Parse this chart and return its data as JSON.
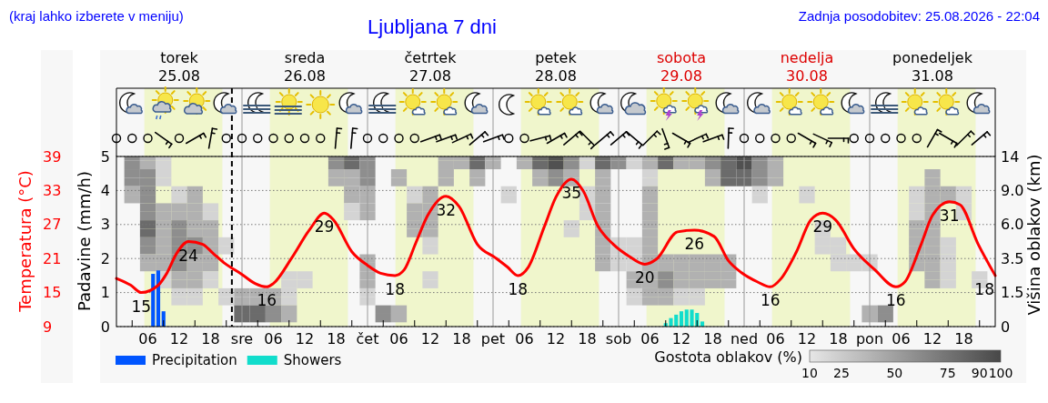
{
  "chart_data": [
    {
      "type": "line",
      "title": "Ljubljana 7 dni",
      "annotations": [
        "(kraj lahko izberete v meniju)",
        "Zadnja posodobitev: 25.08.2026 - 22:04"
      ],
      "xlim": [
        "2026-08-25T00:00",
        "2026-09-01T00:00"
      ],
      "xticks": [
        {
          "value": "2026-08-25T03:00",
          "label": null
        },
        {
          "value": "2026-08-25T06:00",
          "label": "06"
        },
        {
          "value": "2026-08-25T09:00",
          "label": null
        },
        {
          "value": "2026-08-25T12:00",
          "label": "12"
        },
        {
          "value": "2026-08-25T15:00",
          "label": null
        },
        {
          "value": "2026-08-25T18:00",
          "label": "18"
        },
        {
          "value": "2026-08-25T21:00",
          "label": null
        },
        {
          "value": "2026-08-26T03:00",
          "label": null
        },
        {
          "value": "2026-08-26T06:00",
          "label": "06"
        },
        {
          "value": "2026-08-26T09:00",
          "label": null
        },
        {
          "value": "2026-08-26T12:00",
          "label": "12"
        },
        {
          "value": "2026-08-26T15:00",
          "label": null
        },
        {
          "value": "2026-08-26T18:00",
          "label": "18"
        },
        {
          "value": "2026-08-26T21:00",
          "label": null
        },
        {
          "value": "2026-08-27T03:00",
          "label": null
        },
        {
          "value": "2026-08-27T06:00",
          "label": "06"
        },
        {
          "value": "2026-08-27T09:00",
          "label": null
        },
        {
          "value": "2026-08-27T12:00",
          "label": "12"
        },
        {
          "value": "2026-08-27T15:00",
          "label": null
        },
        {
          "value": "2026-08-27T18:00",
          "label": "18"
        },
        {
          "value": "2026-08-27T21:00",
          "label": null
        },
        {
          "value": "2026-08-28T03:00",
          "label": null
        },
        {
          "value": "2026-08-28T06:00",
          "label": "06"
        },
        {
          "value": "2026-08-28T09:00",
          "label": null
        },
        {
          "value": "2026-08-28T12:00",
          "label": "12"
        },
        {
          "value": "2026-08-28T15:00",
          "label": null
        },
        {
          "value": "2026-08-28T18:00",
          "label": "18"
        },
        {
          "value": "2026-08-28T21:00",
          "label": null
        },
        {
          "value": "2026-08-29T03:00",
          "label": null
        },
        {
          "value": "2026-08-29T06:00",
          "label": "06"
        },
        {
          "value": "2026-08-29T09:00",
          "label": null
        },
        {
          "value": "2026-08-29T12:00",
          "label": "12"
        },
        {
          "value": "2026-08-29T15:00",
          "label": null
        },
        {
          "value": "2026-08-29T18:00",
          "label": "18"
        },
        {
          "value": "2026-08-29T21:00",
          "label": null
        },
        {
          "value": "2026-08-30T03:00",
          "label": null
        },
        {
          "value": "2026-08-30T06:00",
          "label": "06"
        },
        {
          "value": "2026-08-30T09:00",
          "label": null
        },
        {
          "value": "2026-08-30T12:00",
          "label": "12"
        },
        {
          "value": "2026-08-30T15:00",
          "label": null
        },
        {
          "value": "2026-08-30T18:00",
          "label": "18"
        },
        {
          "value": "2026-08-30T21:00",
          "label": null
        },
        {
          "value": "2026-08-31T03:00",
          "label": null
        },
        {
          "value": "2026-08-31T06:00",
          "label": "06"
        },
        {
          "value": "2026-08-31T09:00",
          "label": null
        },
        {
          "value": "2026-08-31T12:00",
          "label": "12"
        },
        {
          "value": "2026-08-31T15:00",
          "label": null
        },
        {
          "value": "2026-08-31T18:00",
          "label": "18"
        },
        {
          "value": "2026-08-31T21:00",
          "label": null
        }
      ],
      "x2lim": [
        "2026-08-25T00:00",
        "2026-09-01T00:00"
      ],
      "x2ticks": [
        {
          "value": "2026-08-25T12:00",
          "label": "torek\n25.08"
        },
        {
          "value": "2026-08-26T12:00",
          "label": "sreda\n26.08"
        },
        {
          "value": "2026-08-27T12:00",
          "label": "četrtek\n27.08"
        },
        {
          "value": "2026-08-28T12:00",
          "label": "petek\n28.08"
        },
        {
          "value": "2026-08-29T12:00",
          "label": "sobota\n29.08"
        },
        {
          "value": "2026-08-30T12:00",
          "label": "nedelja\n30.08"
        },
        {
          "value": "2026-08-31T12:00",
          "label": "ponedeljek\n31.08"
        }
      ],
      "ylabel": "Padavine (mm/h)",
      "ylim": [
        0,
        5
      ],
      "yticks": [
        0,
        1,
        2,
        3,
        4,
        5
      ],
      "y2label": "Temperatura (°C)",
      "y2lim": [
        9,
        39
      ],
      "y2ticks": [
        9,
        15,
        21,
        27,
        33,
        39
      ],
      "grid": "y",
      "legend": "bottom left",
      "bands": [
        {
          "axis": "x",
          "from": "2026-08-25T05:20",
          "to": "2026-08-25T20:15",
          "color": "#f0f6cc"
        },
        {
          "axis": "x",
          "from": "2026-08-26T05:20",
          "to": "2026-08-26T20:15",
          "color": "#f0f6cc"
        },
        {
          "axis": "x",
          "from": "2026-08-27T05:20",
          "to": "2026-08-27T20:15",
          "color": "#f0f6cc"
        },
        {
          "axis": "x",
          "from": "2026-08-28T05:20",
          "to": "2026-08-28T20:15",
          "color": "#f0f6cc"
        },
        {
          "axis": "x",
          "from": "2026-08-29T05:20",
          "to": "2026-08-29T20:15",
          "color": "#f0f6cc"
        },
        {
          "axis": "x",
          "from": "2026-08-30T05:20",
          "to": "2026-08-30T20:15",
          "color": "#f0f6cc"
        },
        {
          "axis": "x",
          "from": "2026-08-31T05:20",
          "to": "2026-08-31T20:15",
          "color": "#f0f6cc"
        }
      ],
      "ref_lines": [
        {
          "axis": "x",
          "value": "2026-08-26T00:00",
          "color": "#999999"
        },
        {
          "axis": "x",
          "value": "2026-08-27T00:00",
          "color": "#999999"
        },
        {
          "axis": "x",
          "value": "2026-08-28T00:00",
          "color": "#999999"
        },
        {
          "axis": "x",
          "value": "2026-08-29T00:00",
          "color": "#999999"
        },
        {
          "axis": "x",
          "value": "2026-08-30T00:00",
          "color": "#999999"
        },
        {
          "axis": "x",
          "value": "2026-08-31T00:00",
          "color": "#999999"
        },
        {
          "axis": "x",
          "value": "2026-08-25T22:04",
          "color": "#000000",
          "line_style": "dashed"
        }
      ],
      "series": [
        {
          "type": "bar",
          "name": "Precipitation",
          "color": "#0055ff",
          "x": [
            "2026-08-25T07:00",
            "2026-08-25T08:00",
            "2026-08-25T09:00"
          ],
          "values": [
            1.55,
            1.65,
            0.45
          ]
        },
        {
          "type": "bar",
          "name": "Showers",
          "color": "#11ddcc",
          "x": [
            "2026-08-29T09:00",
            "2026-08-29T10:00",
            "2026-08-29T11:00",
            "2026-08-29T12:00",
            "2026-08-29T13:00",
            "2026-08-29T14:00",
            "2026-08-29T15:00",
            "2026-08-29T16:00"
          ],
          "values": [
            0.1,
            0.25,
            0.35,
            0.45,
            0.5,
            0.5,
            0.4,
            0.15
          ]
        },
        {
          "type": "line",
          "axis": "y2",
          "color": "#ff0000",
          "x": [
            "2026-08-25T00:00",
            "2026-08-25T02:45",
            "2026-08-25T04:45",
            "2026-08-25T08:00",
            "2026-08-25T09:30",
            "2026-08-25T11:30",
            "2026-08-25T13:45",
            "2026-08-25T16:30",
            "2026-08-25T18:30",
            "2026-08-25T20:30",
            "2026-08-26T00:00",
            "2026-08-26T02:30",
            "2026-08-26T04:45",
            "2026-08-26T06:00",
            "2026-08-26T09:30",
            "2026-08-26T13:00",
            "2026-08-26T15:45",
            "2026-08-26T17:30",
            "2026-08-26T21:00",
            "2026-08-27T00:00",
            "2026-08-27T02:30",
            "2026-08-27T05:15",
            "2026-08-27T07:00",
            "2026-08-27T09:15",
            "2026-08-27T11:30",
            "2026-08-27T15:00",
            "2026-08-27T17:30",
            "2026-08-27T21:00",
            "2026-08-28T00:30",
            "2026-08-28T02:45",
            "2026-08-28T04:45",
            "2026-08-28T06:45",
            "2026-08-28T09:45",
            "2026-08-28T12:00",
            "2026-08-28T15:00",
            "2026-08-28T17:15",
            "2026-08-28T20:00",
            "2026-08-28T23:00",
            "2026-08-29T02:00",
            "2026-08-29T05:00",
            "2026-08-29T07:15",
            "2026-08-29T11:15",
            "2026-08-29T14:30",
            "2026-08-29T18:15",
            "2026-08-29T21:00",
            "2026-08-29T23:30",
            "2026-08-30T02:30",
            "2026-08-30T05:00",
            "2026-08-30T07:00",
            "2026-08-30T10:00",
            "2026-08-30T12:45",
            "2026-08-30T15:00",
            "2026-08-30T17:30",
            "2026-08-30T21:00",
            "2026-08-31T01:00",
            "2026-08-31T05:00",
            "2026-08-31T06:45",
            "2026-08-31T09:45",
            "2026-08-31T12:00",
            "2026-08-31T15:15",
            "2026-08-31T17:15",
            "2026-08-31T20:45",
            "2026-09-01T00:00"
          ],
          "values": [
            17.5,
            16.3,
            15,
            16.3,
            18.2,
            21.9,
            24,
            23.5,
            21.9,
            20.3,
            18.2,
            16.6,
            16,
            16.6,
            21.1,
            26.2,
            29,
            27.8,
            22.2,
            19.8,
            18.4,
            18,
            19,
            23.8,
            28.6,
            32,
            30.2,
            23.5,
            21.1,
            19.5,
            18,
            19.5,
            26.5,
            31.8,
            35,
            32.9,
            26.8,
            23.5,
            21.4,
            20,
            20.9,
            25.7,
            26,
            24.9,
            20.6,
            18.5,
            16.9,
            16,
            17.4,
            22.2,
            27.8,
            29,
            27.8,
            22.7,
            19,
            16,
            16.9,
            23.3,
            28.6,
            31,
            30.5,
            23.5,
            18
          ],
          "value_labels": [
            null,
            null,
            "15",
            null,
            null,
            null,
            "24",
            null,
            null,
            null,
            null,
            null,
            "16",
            null,
            null,
            null,
            "29",
            null,
            null,
            null,
            null,
            "18",
            null,
            null,
            null,
            "32",
            null,
            null,
            null,
            null,
            "18",
            null,
            null,
            null,
            "35",
            null,
            null,
            null,
            null,
            "20",
            null,
            null,
            "26",
            null,
            null,
            null,
            null,
            "16",
            null,
            null,
            null,
            "29",
            null,
            null,
            null,
            "16",
            null,
            null,
            null,
            "31",
            null,
            null,
            "18"
          ]
        }
      ]
    },
    {
      "type": "heatmap",
      "clabel": "Gostota oblakov (%)",
      "ylabel": "Višina oblakov (km)",
      "clim": [
        10,
        100
      ],
      "cticks": [
        10,
        25,
        50,
        75,
        90,
        100
      ],
      "categories": [
        null,
        null,
        null,
        null,
        null,
        null,
        null,
        null,
        "sre",
        null,
        null,
        null,
        null,
        null,
        null,
        null,
        "čet",
        null,
        null,
        null,
        null,
        null,
        null,
        null,
        "pet",
        null,
        null,
        null,
        null,
        null,
        null,
        null,
        "sob",
        null,
        null,
        null,
        null,
        null,
        null,
        null,
        "ned",
        null,
        null,
        null,
        null,
        null,
        null,
        null,
        "pon",
        null,
        null,
        null,
        null,
        null,
        null,
        null,
        null
      ],
      "y_categories": [
        "14",
        null,
        null,
        null,
        "9.0",
        null,
        null,
        null,
        "6.0",
        null,
        null,
        null,
        "3.5",
        null,
        null,
        null,
        "1.5",
        null,
        null,
        null,
        "0"
      ],
      "cells": [
        [
          null,
          60,
          40,
          20,
          null,
          null,
          null,
          null,
          null,
          null,
          null,
          null,
          null,
          null,
          60,
          80,
          60,
          null,
          null,
          null,
          null,
          40,
          40,
          80,
          40,
          null,
          40,
          80,
          95,
          60,
          20,
          80,
          60,
          20,
          40,
          80,
          40,
          40,
          60,
          80,
          95,
          60,
          40,
          null,
          null,
          null,
          null,
          null,
          null,
          null,
          null,
          null,
          null,
          null,
          null,
          null,
          null
        ],
        [
          null,
          60,
          40,
          20,
          null,
          null,
          null,
          null,
          null,
          null,
          null,
          null,
          null,
          null,
          60,
          80,
          60,
          null,
          null,
          null,
          null,
          40,
          40,
          80,
          40,
          null,
          40,
          80,
          95,
          60,
          20,
          80,
          60,
          20,
          40,
          80,
          40,
          40,
          60,
          80,
          95,
          60,
          40,
          null,
          null,
          null,
          null,
          null,
          null,
          null,
          null,
          null,
          null,
          null,
          null,
          null,
          null
        ],
        [
          null,
          60,
          60,
          20,
          null,
          null,
          null,
          null,
          null,
          null,
          null,
          null,
          null,
          null,
          40,
          40,
          60,
          null,
          40,
          null,
          null,
          40,
          null,
          40,
          null,
          null,
          null,
          40,
          60,
          40,
          null,
          40,
          null,
          null,
          20,
          null,
          null,
          null,
          40,
          80,
          80,
          60,
          40,
          null,
          null,
          null,
          null,
          null,
          null,
          null,
          null,
          null,
          40,
          null,
          null,
          null,
          null
        ],
        [
          null,
          60,
          60,
          20,
          null,
          null,
          null,
          null,
          null,
          null,
          null,
          null,
          null,
          null,
          40,
          40,
          60,
          null,
          40,
          null,
          null,
          40,
          null,
          40,
          null,
          null,
          null,
          40,
          60,
          40,
          null,
          40,
          null,
          null,
          20,
          null,
          null,
          null,
          40,
          80,
          80,
          60,
          40,
          null,
          null,
          null,
          null,
          null,
          null,
          null,
          null,
          null,
          40,
          null,
          null,
          null,
          null
        ],
        [
          null,
          40,
          60,
          null,
          20,
          40,
          null,
          null,
          null,
          null,
          null,
          null,
          null,
          null,
          null,
          40,
          40,
          null,
          null,
          20,
          40,
          null,
          null,
          null,
          null,
          20,
          null,
          null,
          null,
          null,
          20,
          40,
          null,
          null,
          40,
          null,
          null,
          null,
          null,
          null,
          null,
          20,
          null,
          null,
          20,
          null,
          null,
          null,
          null,
          null,
          null,
          20,
          40,
          40,
          20,
          null,
          null
        ],
        [
          null,
          40,
          60,
          null,
          20,
          40,
          null,
          null,
          null,
          null,
          null,
          null,
          null,
          null,
          null,
          40,
          40,
          null,
          null,
          20,
          40,
          null,
          null,
          null,
          null,
          20,
          null,
          null,
          null,
          null,
          20,
          40,
          null,
          null,
          40,
          null,
          null,
          null,
          null,
          null,
          null,
          20,
          null,
          null,
          20,
          null,
          null,
          null,
          null,
          null,
          null,
          20,
          40,
          40,
          20,
          null,
          null
        ],
        [
          null,
          null,
          60,
          40,
          40,
          40,
          20,
          null,
          null,
          null,
          null,
          null,
          null,
          null,
          null,
          20,
          40,
          null,
          null,
          40,
          40,
          null,
          null,
          null,
          null,
          null,
          null,
          null,
          null,
          null,
          20,
          40,
          null,
          null,
          40,
          null,
          null,
          null,
          null,
          null,
          null,
          null,
          null,
          null,
          null,
          null,
          null,
          null,
          null,
          null,
          null,
          20,
          40,
          null,
          20,
          null,
          null
        ],
        [
          null,
          null,
          60,
          40,
          40,
          40,
          20,
          null,
          null,
          null,
          null,
          null,
          null,
          null,
          null,
          20,
          40,
          null,
          null,
          40,
          40,
          null,
          null,
          null,
          null,
          null,
          null,
          null,
          null,
          null,
          20,
          40,
          null,
          null,
          40,
          null,
          null,
          null,
          null,
          null,
          null,
          null,
          null,
          null,
          null,
          null,
          null,
          null,
          null,
          null,
          null,
          20,
          40,
          null,
          20,
          null,
          null
        ],
        [
          null,
          null,
          80,
          40,
          60,
          40,
          40,
          null,
          null,
          null,
          null,
          null,
          null,
          null,
          null,
          null,
          null,
          null,
          null,
          40,
          40,
          null,
          null,
          null,
          null,
          null,
          null,
          null,
          null,
          20,
          null,
          40,
          null,
          null,
          40,
          null,
          null,
          null,
          null,
          null,
          null,
          null,
          null,
          null,
          null,
          20,
          null,
          null,
          null,
          null,
          null,
          40,
          40,
          null,
          null,
          null,
          null
        ],
        [
          null,
          null,
          80,
          40,
          60,
          40,
          40,
          null,
          null,
          null,
          null,
          null,
          null,
          null,
          null,
          null,
          null,
          null,
          null,
          40,
          40,
          null,
          null,
          null,
          null,
          null,
          null,
          null,
          null,
          20,
          null,
          40,
          null,
          null,
          40,
          null,
          null,
          null,
          null,
          null,
          null,
          null,
          null,
          null,
          null,
          20,
          null,
          null,
          null,
          null,
          null,
          40,
          40,
          null,
          null,
          null,
          null
        ],
        [
          null,
          null,
          60,
          40,
          60,
          60,
          40,
          20,
          null,
          null,
          null,
          null,
          null,
          null,
          null,
          null,
          null,
          null,
          null,
          null,
          20,
          null,
          null,
          null,
          null,
          null,
          null,
          null,
          null,
          null,
          null,
          40,
          20,
          20,
          40,
          null,
          null,
          null,
          null,
          null,
          null,
          null,
          null,
          null,
          null,
          20,
          20,
          null,
          null,
          null,
          null,
          40,
          40,
          20,
          null,
          null,
          null
        ],
        [
          null,
          null,
          60,
          40,
          60,
          60,
          40,
          20,
          null,
          null,
          null,
          null,
          null,
          null,
          null,
          null,
          null,
          null,
          null,
          null,
          20,
          null,
          null,
          null,
          null,
          null,
          null,
          null,
          null,
          null,
          null,
          40,
          20,
          20,
          40,
          null,
          null,
          null,
          null,
          null,
          null,
          null,
          null,
          null,
          null,
          20,
          20,
          null,
          null,
          null,
          null,
          40,
          40,
          20,
          null,
          null,
          null
        ],
        [
          null,
          null,
          40,
          40,
          60,
          40,
          40,
          null,
          null,
          null,
          null,
          null,
          null,
          null,
          null,
          null,
          40,
          null,
          null,
          null,
          null,
          null,
          null,
          null,
          null,
          null,
          null,
          null,
          null,
          null,
          null,
          40,
          20,
          20,
          40,
          40,
          40,
          40,
          40,
          40,
          null,
          null,
          null,
          null,
          null,
          null,
          20,
          20,
          20,
          null,
          null,
          40,
          40,
          20,
          null,
          null,
          null
        ],
        [
          null,
          null,
          40,
          40,
          60,
          40,
          40,
          null,
          null,
          null,
          null,
          null,
          null,
          null,
          null,
          null,
          40,
          null,
          null,
          null,
          null,
          null,
          null,
          null,
          null,
          null,
          null,
          null,
          null,
          null,
          null,
          40,
          20,
          20,
          40,
          40,
          40,
          40,
          40,
          40,
          null,
          null,
          null,
          null,
          null,
          null,
          20,
          20,
          20,
          null,
          null,
          40,
          40,
          20,
          null,
          null,
          null
        ],
        [
          null,
          null,
          null,
          20,
          40,
          40,
          20,
          null,
          null,
          null,
          null,
          20,
          20,
          null,
          null,
          null,
          40,
          null,
          null,
          null,
          20,
          null,
          null,
          null,
          null,
          null,
          null,
          null,
          null,
          null,
          null,
          null,
          null,
          40,
          40,
          60,
          40,
          40,
          40,
          40,
          null,
          null,
          null,
          null,
          null,
          null,
          null,
          null,
          null,
          null,
          null,
          null,
          40,
          20,
          null,
          20,
          null
        ],
        [
          null,
          null,
          null,
          20,
          40,
          40,
          20,
          null,
          null,
          null,
          null,
          20,
          20,
          null,
          null,
          null,
          40,
          null,
          null,
          null,
          20,
          null,
          null,
          null,
          null,
          null,
          null,
          null,
          null,
          null,
          null,
          null,
          null,
          40,
          40,
          60,
          40,
          40,
          40,
          40,
          null,
          null,
          null,
          null,
          null,
          null,
          null,
          null,
          null,
          null,
          null,
          null,
          40,
          20,
          null,
          20,
          null
        ],
        [
          null,
          null,
          null,
          null,
          20,
          20,
          null,
          20,
          40,
          40,
          40,
          20,
          null,
          null,
          null,
          null,
          20,
          null,
          null,
          null,
          null,
          null,
          null,
          null,
          null,
          null,
          null,
          null,
          null,
          null,
          null,
          null,
          null,
          20,
          40,
          40,
          20,
          20,
          null,
          null,
          null,
          null,
          null,
          null,
          null,
          null,
          null,
          null,
          null,
          null,
          null,
          null,
          null,
          null,
          null,
          null,
          null
        ],
        [
          null,
          null,
          null,
          null,
          20,
          20,
          null,
          20,
          40,
          40,
          40,
          20,
          null,
          null,
          null,
          null,
          20,
          null,
          null,
          null,
          null,
          null,
          null,
          null,
          null,
          null,
          null,
          null,
          null,
          null,
          null,
          null,
          null,
          20,
          40,
          40,
          20,
          20,
          null,
          null,
          null,
          null,
          null,
          null,
          null,
          null,
          null,
          null,
          null,
          null,
          null,
          null,
          null,
          null,
          null,
          null,
          null
        ],
        [
          null,
          null,
          null,
          null,
          null,
          null,
          null,
          null,
          80,
          80,
          60,
          40,
          null,
          null,
          null,
          null,
          null,
          60,
          40,
          null,
          null,
          null,
          null,
          null,
          null,
          null,
          null,
          null,
          null,
          null,
          null,
          null,
          null,
          null,
          null,
          null,
          null,
          null,
          null,
          null,
          null,
          null,
          null,
          null,
          null,
          null,
          null,
          null,
          40,
          60,
          null,
          null,
          null,
          null,
          null,
          null,
          null
        ],
        [
          null,
          null,
          null,
          null,
          null,
          null,
          null,
          null,
          80,
          80,
          60,
          40,
          null,
          null,
          null,
          null,
          null,
          60,
          40,
          null,
          null,
          null,
          null,
          null,
          null,
          null,
          null,
          null,
          null,
          null,
          null,
          null,
          null,
          null,
          null,
          null,
          null,
          null,
          null,
          null,
          null,
          null,
          null,
          null,
          null,
          null,
          null,
          null,
          40,
          60,
          null,
          null,
          null,
          null,
          null,
          null,
          null
        ],
        [
          null,
          null,
          null,
          null,
          null,
          null,
          null,
          null,
          null,
          null,
          null,
          null,
          null,
          null,
          null,
          null,
          null,
          null,
          null,
          null,
          null,
          null,
          null,
          null,
          null,
          null,
          null,
          null,
          null,
          null,
          null,
          null,
          null,
          null,
          null,
          null,
          null,
          null,
          null,
          null,
          null,
          null,
          null,
          null,
          null,
          null,
          null,
          null,
          null,
          null,
          null,
          null,
          null,
          null,
          null,
          null,
          null
        ]
      ]
    }
  ]
}
